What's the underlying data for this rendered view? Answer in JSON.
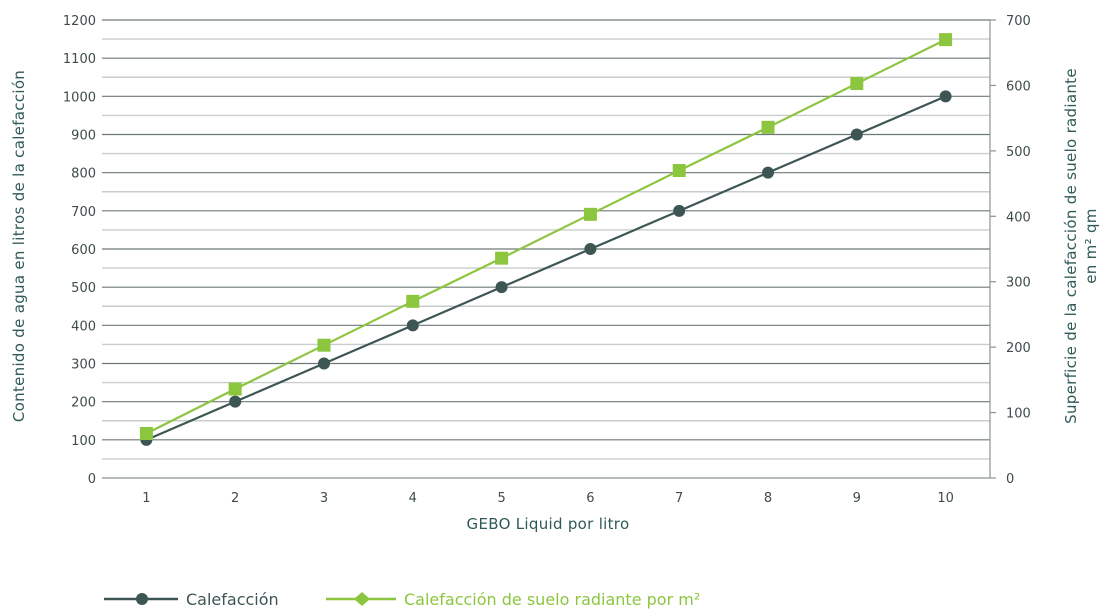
{
  "chart_data": {
    "type": "line",
    "x": [
      1,
      2,
      3,
      4,
      5,
      6,
      7,
      8,
      9,
      10
    ],
    "xlabel": "GEBO Liquid por litro",
    "ylabel_left": "Contenido de agua en litros de la calefacción",
    "ylabel_right_line1": "Superficie de la calefacción de suelo radiante",
    "ylabel_right_line2": "en m² qm",
    "y_left_lim": [
      0,
      1200
    ],
    "y_left_ticks": [
      0,
      100,
      200,
      300,
      400,
      500,
      600,
      700,
      800,
      900,
      1000,
      1100,
      1200
    ],
    "y_right_lim": [
      0,
      700
    ],
    "y_right_ticks": [
      0,
      100,
      200,
      300,
      400,
      500,
      600,
      700
    ],
    "grid": true,
    "legend_position": "bottom-left",
    "series": [
      {
        "name": "Calefacción",
        "axis": "left",
        "values": [
          100,
          200,
          300,
          400,
          500,
          600,
          700,
          800,
          900,
          1000
        ],
        "color": "#3d5654",
        "marker": "circle"
      },
      {
        "name": "Calefacción de suelo radiante por m²",
        "axis": "right",
        "values": [
          68,
          136,
          203,
          270,
          336,
          403,
          470,
          536,
          603,
          670
        ],
        "color": "#8cc63f",
        "marker": "square"
      }
    ]
  }
}
